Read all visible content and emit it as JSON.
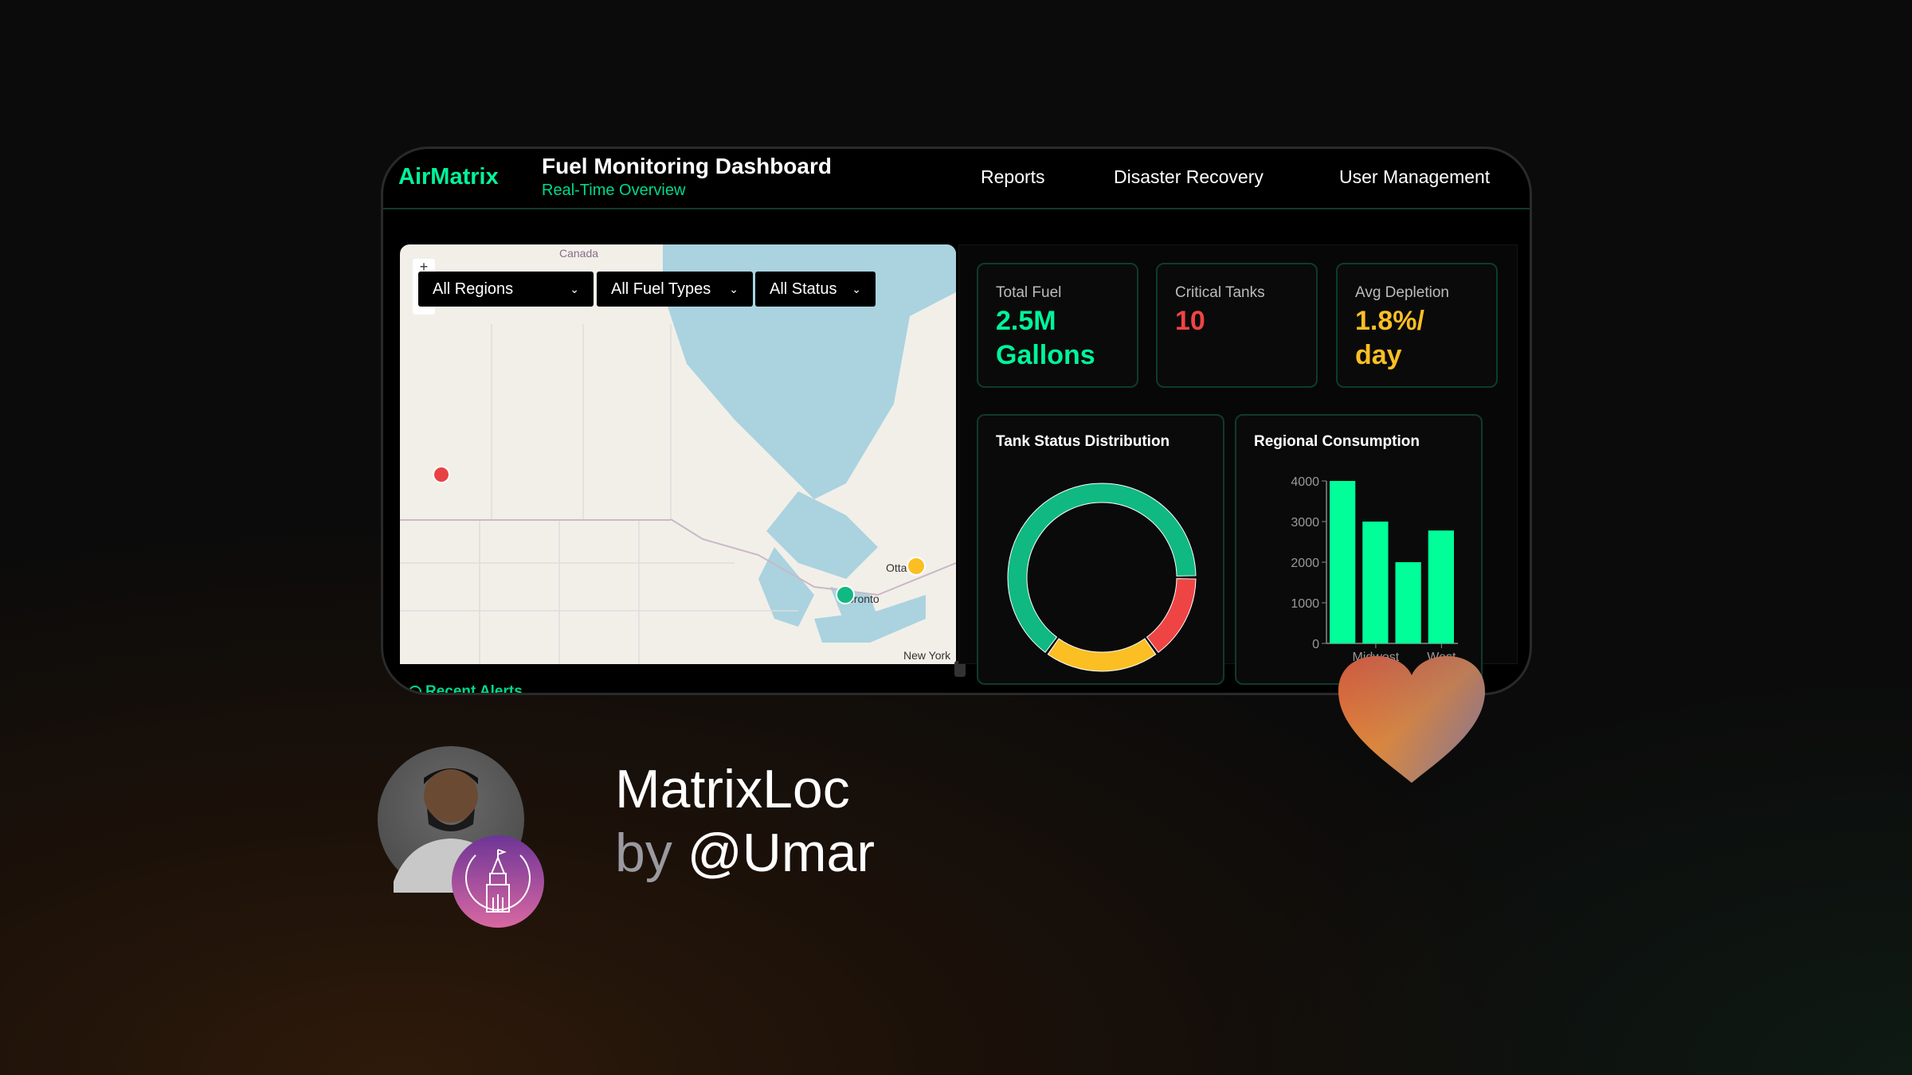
{
  "header": {
    "logo": "AirMatrix",
    "title": "Fuel Monitoring Dashboard",
    "subtitle": "Real-Time Overview",
    "nav": [
      {
        "label": "Reports"
      },
      {
        "label": "Disaster Recovery"
      },
      {
        "label": "User Management"
      }
    ]
  },
  "filters": [
    {
      "value": "All Regions"
    },
    {
      "value": "All Fuel Types"
    },
    {
      "value": "All Status"
    }
  ],
  "map": {
    "labels": {
      "country": "Canada",
      "city1": "Ottawa",
      "city2": "Toronto",
      "city3": "New York"
    },
    "zoom_in": "+",
    "markers": [
      {
        "color": "#e84343"
      },
      {
        "color": "#fbbf24"
      },
      {
        "color": "#10b981"
      }
    ]
  },
  "stats": [
    {
      "label": "Total Fuel",
      "value": "2.5M Gallons",
      "color": "#00f59b"
    },
    {
      "label": "Critical Tanks",
      "value": "10",
      "color": "#ef4444"
    },
    {
      "label": "Avg Depletion",
      "value": "1.8%/ day",
      "color": "#fbbf24"
    }
  ],
  "chart_data": [
    {
      "type": "pie",
      "title": "Tank Status Distribution",
      "donut": true,
      "values": [
        65,
        20,
        15
      ],
      "colors": [
        "#10b981",
        "#fbbf24",
        "#ef4444"
      ]
    },
    {
      "type": "bar",
      "title": "Regional Consumption",
      "categories": [
        "",
        "Midwest",
        "",
        "West"
      ],
      "values": [
        4000,
        3000,
        2000,
        2780
      ],
      "ylim": [
        0,
        4000
      ],
      "yticks": [
        0,
        1000,
        2000,
        3000,
        4000
      ],
      "color": "#00ff99",
      "grid": false
    }
  ],
  "alerts": {
    "title": "Recent Alerts"
  },
  "promo": {
    "name": "MatrixLoc",
    "by": "by",
    "handle": "@Umar"
  }
}
